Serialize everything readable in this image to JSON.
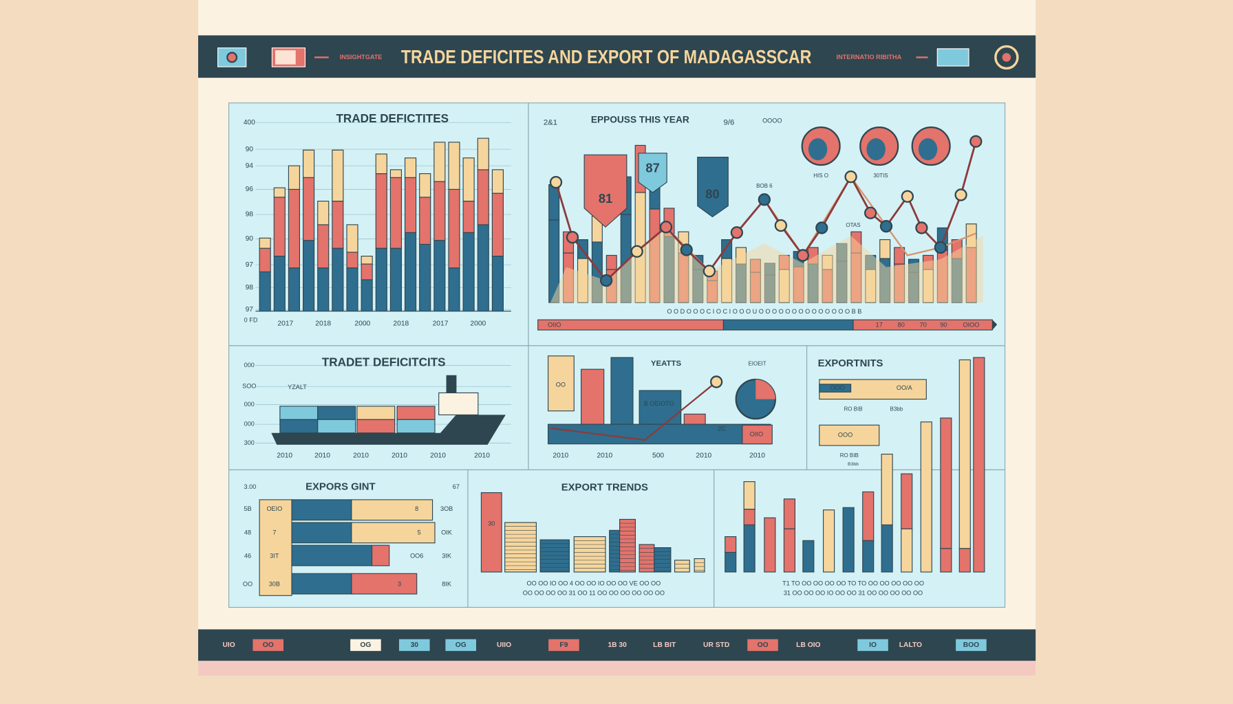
{
  "header": {
    "brand": "INSIGHTGATE",
    "title": "TRADE DEFICITES AND EXPORT OF MADAGASSCAR",
    "tagline": "INTERNATIO RIBITHA"
  },
  "panels": [
    {
      "title": "TRADE DEFICTITES",
      "y_labels": [
        "400",
        "90",
        "94",
        "96",
        "98",
        "90",
        "97",
        "98",
        "97"
      ],
      "corner": "0 FD",
      "x_labels": [
        "2017",
        "2018",
        "2000",
        "2018",
        "2017",
        "2000"
      ]
    },
    {
      "title": "EPPOUSS THIS YEAR",
      "corner_left": "2&1",
      "corner_right": "9/6",
      "note": "OOOO",
      "flags": [
        "81",
        "87",
        "80"
      ],
      "tags": [
        "BOB 6",
        "HIS O",
        "30TIS",
        "OTAS"
      ],
      "x_labels": "O  O  D  O  O  O  C  I  O  C  I  O  O  O  U  O  O  O  O  O  O  O  O  O  O  O  O  O  O  B  B",
      "bar_labels": [
        "OIIO",
        "17",
        "80",
        "70",
        "90",
        "OIOO"
      ]
    },
    {
      "title": "TRADET DEFICITCITS",
      "y_labels": [
        "000",
        "SOO",
        "000",
        "000",
        "300"
      ],
      "note": "YZALT",
      "x_labels": [
        "2010",
        "2010",
        "2010",
        "2010",
        "2010",
        "2010"
      ]
    },
    {
      "title": "YEATTS",
      "note": "EIOEIT",
      "labels": [
        "OO",
        "B OEIOTO",
        "2C",
        "OIIO"
      ],
      "x_labels": [
        "2010",
        "2010",
        "500",
        "2010",
        "2010"
      ]
    },
    {
      "title": "EXPORTNITS",
      "labels": [
        "OOO",
        "OO/A",
        "RO BIB",
        "B3bb",
        "OOO",
        "RO BIB",
        "B3bb"
      ]
    },
    {
      "title": "EXPORS GINT",
      "corner_left": "3.00",
      "corner_right": "67",
      "y_labels": [
        "5B",
        "48",
        "46",
        "OO"
      ],
      "inner": [
        "OEIO",
        "7",
        "3IT",
        "30B"
      ],
      "ends": [
        "8",
        "5",
        "OO6",
        "3"
      ],
      "right": [
        "3OB",
        "OIK",
        "3IK",
        "8IK"
      ]
    },
    {
      "title": "EXPORT TRENDS",
      "bar_label": "30",
      "x_labels": [
        "OO  OO  IO  OO  4  OO  OO  IO  OO  OO  VE  OO  OO",
        "OO  OO  OO  OO  31  OO  11  OO  OO  OO  OO  OO  OO"
      ]
    },
    {
      "x_labels": [
        "T1  TO  OO  OO  OO  OO  TO  TO  OO  OO  OO  OO  OO",
        "31  OO  OO  OO  IO  OO  OO  31  OO  OO  OO  OO  OO"
      ]
    }
  ],
  "footer": [
    "UIO",
    "OO",
    "OG",
    "30",
    "OG",
    "UIIO",
    "F9",
    "1B 30",
    "LB BIT",
    "UR STD",
    "OO",
    "LB OIO",
    "IO",
    "LALTO",
    "BOO"
  ]
}
